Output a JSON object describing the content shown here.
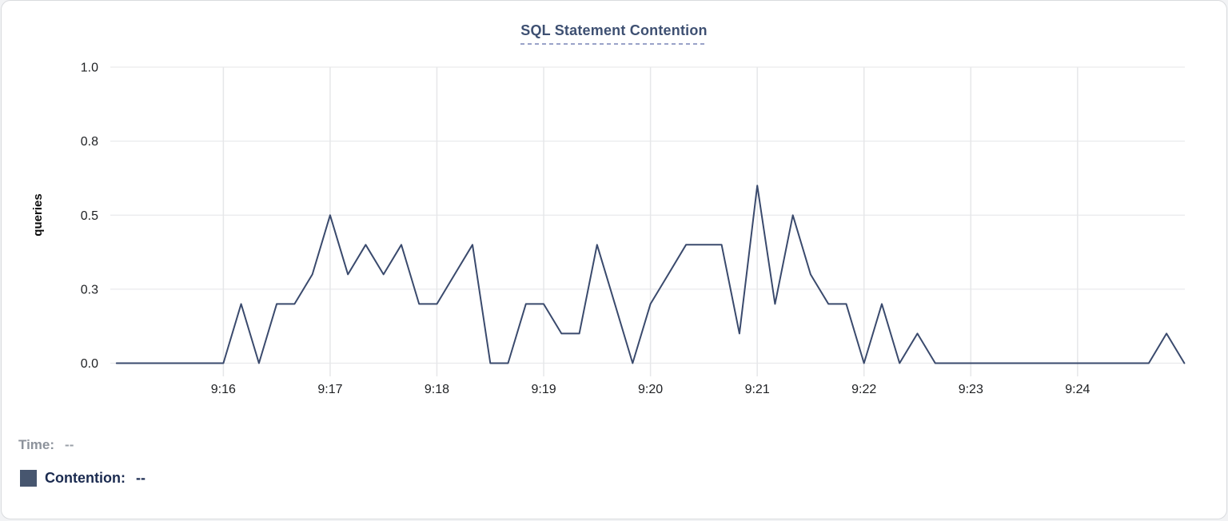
{
  "chart_data": {
    "type": "line",
    "title": "SQL Statement Contention",
    "ylabel": "queries",
    "xlabel": "",
    "ylim": [
      0,
      1.0
    ],
    "grid": true,
    "legend_position": "bottom-left",
    "x_interval_seconds": 10,
    "y_ticks": [
      {
        "label": "1.0",
        "value": 1.0
      },
      {
        "label": "0.8",
        "value": 0.75
      },
      {
        "label": "0.5",
        "value": 0.5
      },
      {
        "label": "0.3",
        "value": 0.25
      },
      {
        "label": "0.0",
        "value": 0.0
      }
    ],
    "x_ticks": [
      "9:16",
      "9:17",
      "9:18",
      "9:19",
      "9:20",
      "9:21",
      "9:22",
      "9:23",
      "9:24"
    ],
    "series": [
      {
        "name": "Contention",
        "color": "#3a4a6d",
        "x": [
          "9:15:00",
          "9:15:10",
          "9:15:20",
          "9:15:30",
          "9:15:40",
          "9:15:50",
          "9:16:00",
          "9:16:10",
          "9:16:20",
          "9:16:30",
          "9:16:40",
          "9:16:50",
          "9:17:00",
          "9:17:10",
          "9:17:20",
          "9:17:30",
          "9:17:40",
          "9:17:50",
          "9:18:00",
          "9:18:10",
          "9:18:20",
          "9:18:30",
          "9:18:40",
          "9:18:50",
          "9:19:00",
          "9:19:10",
          "9:19:20",
          "9:19:30",
          "9:19:40",
          "9:19:50",
          "9:20:00",
          "9:20:10",
          "9:20:20",
          "9:20:30",
          "9:20:40",
          "9:20:50",
          "9:21:00",
          "9:21:10",
          "9:21:20",
          "9:21:30",
          "9:21:40",
          "9:21:50",
          "9:22:00",
          "9:22:10",
          "9:22:20",
          "9:22:30",
          "9:22:40",
          "9:22:50",
          "9:23:00",
          "9:23:10",
          "9:23:20",
          "9:23:30",
          "9:23:40",
          "9:23:50",
          "9:24:00",
          "9:24:10",
          "9:24:20",
          "9:24:30",
          "9:24:40",
          "9:24:50",
          "9:25:00"
        ],
        "values": [
          0,
          0,
          0,
          0,
          0,
          0,
          0,
          0.2,
          0,
          0.2,
          0.2,
          0.3,
          0.5,
          0.3,
          0.4,
          0.3,
          0.4,
          0.2,
          0.2,
          0.3,
          0.4,
          0,
          0,
          0.2,
          0.2,
          0.1,
          0.1,
          0.4,
          0.2,
          0,
          0.2,
          0.3,
          0.4,
          0.4,
          0.4,
          0.1,
          0.6,
          0.2,
          0.5,
          0.3,
          0.2,
          0.2,
          0,
          0.2,
          0,
          0.1,
          0,
          0,
          0,
          0,
          0,
          0,
          0,
          0,
          0,
          0,
          0,
          0,
          0,
          0.1,
          0
        ]
      }
    ]
  },
  "legend": {
    "time_label": "Time:",
    "time_value": "--",
    "contention_label": "Contention:",
    "contention_value": "--"
  },
  "colors": {
    "title": "#3e5072",
    "line": "#3a4a6d",
    "swatch": "#47566f",
    "legend_muted": "#8c929b",
    "legend_muted_value": "#9aa0a8",
    "legend_dark": "#1b2b50",
    "grid": "#e8e9eb"
  }
}
